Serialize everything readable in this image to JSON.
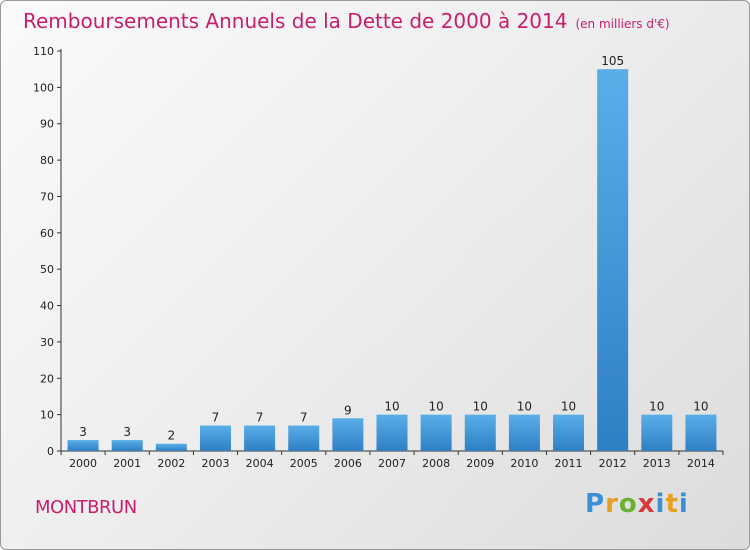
{
  "title": "Remboursements Annuels de la Dette de 2000 à 2014",
  "unit_note": "(en milliers d'€)",
  "town": "MONTBRUN",
  "logo": {
    "chars": [
      "P",
      "r",
      "o",
      "x",
      "i",
      "t",
      "i"
    ]
  },
  "colors": {
    "title": "#c71e6e",
    "bar_top": "#5aaee8",
    "bar_bottom": "#2f7fc4",
    "axis": "#333333"
  },
  "chart_data": {
    "type": "bar",
    "categories": [
      "2000",
      "2001",
      "2002",
      "2003",
      "2004",
      "2005",
      "2006",
      "2007",
      "2008",
      "2009",
      "2010",
      "2011",
      "2012",
      "2013",
      "2014"
    ],
    "values": [
      3,
      3,
      2,
      7,
      7,
      7,
      9,
      10,
      10,
      10,
      10,
      10,
      105,
      10,
      10
    ],
    "data_labels": [
      "3",
      "3",
      "2",
      "7",
      "7",
      "7",
      "9",
      "10",
      "10",
      "10",
      "10",
      "10",
      "105",
      "10",
      "10"
    ],
    "ylim": [
      0,
      110
    ],
    "yticks": [
      0,
      10,
      20,
      30,
      40,
      50,
      60,
      70,
      80,
      90,
      100,
      110
    ],
    "grid": false,
    "legend": "none"
  }
}
